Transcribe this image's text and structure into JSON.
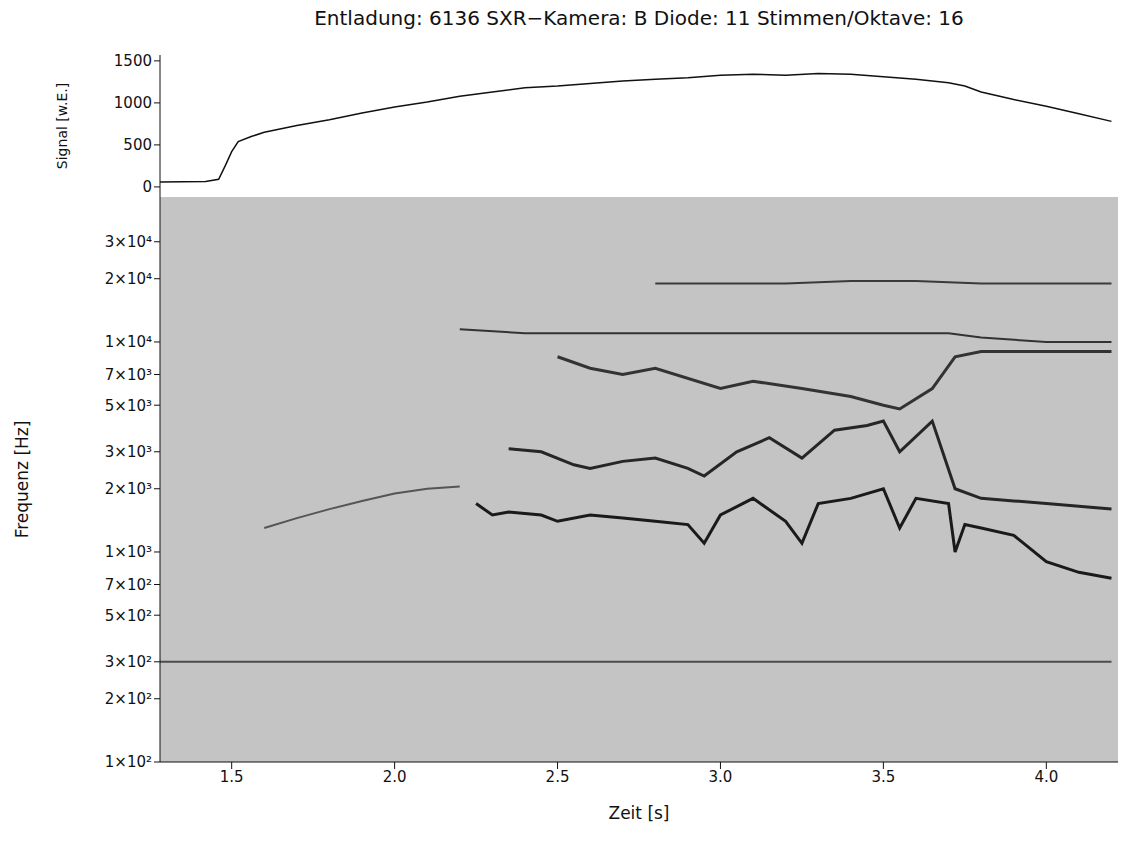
{
  "chart_data": [
    {
      "type": "line",
      "title": "Entladung: 6136 SXR−Kamera: B Diode: 11 Stimmen/Oktave: 16",
      "y_label": "Signal [w.E.]",
      "color": "#111111",
      "tick_labels": "y",
      "x": [
        1.28,
        1.35,
        1.42,
        1.46,
        1.48,
        1.5,
        1.52,
        1.56,
        1.6,
        1.7,
        1.8,
        1.9,
        2.0,
        2.1,
        2.2,
        2.3,
        2.4,
        2.5,
        2.6,
        2.7,
        2.8,
        2.9,
        3.0,
        3.1,
        3.2,
        3.3,
        3.4,
        3.5,
        3.6,
        3.7,
        3.75,
        3.8,
        3.9,
        4.0,
        4.1,
        4.2
      ],
      "values": [
        60,
        62,
        65,
        90,
        250,
        420,
        540,
        600,
        650,
        730,
        800,
        880,
        950,
        1010,
        1080,
        1130,
        1180,
        1200,
        1230,
        1260,
        1280,
        1300,
        1330,
        1340,
        1330,
        1350,
        1340,
        1310,
        1280,
        1240,
        1200,
        1130,
        1040,
        960,
        870,
        780
      ],
      "xlim": [
        1.28,
        4.22
      ],
      "xticks": [
        1.5,
        {
          "value": 2,
          "label": "2.0"
        },
        2.5,
        {
          "value": 3,
          "label": "3.0"
        },
        3.5,
        {
          "value": 4,
          "label": "4.0"
        }
      ],
      "ylim": [
        -120,
        1570
      ],
      "yticks": [
        0,
        500,
        1000,
        1500
      ]
    },
    {
      "type": "line",
      "x_label": "Zeit [s]",
      "y_label": "Frequenz [Hz]",
      "log": "y",
      "xlim": [
        1.28,
        4.22
      ],
      "xticks": [
        1.5,
        {
          "value": 2,
          "label": "2.0"
        },
        2.5,
        {
          "value": 3,
          "label": "3.0"
        },
        3.5,
        {
          "value": 4,
          "label": "4.0"
        }
      ],
      "ylim": [
        100,
        49000
      ],
      "yticks": [
        {
          "value": 100,
          "label": "1×10²"
        },
        {
          "value": 200,
          "label": "2×10²"
        },
        {
          "value": 300,
          "label": "3×10²"
        },
        {
          "value": 500,
          "label": "5×10²"
        },
        {
          "value": 700,
          "label": "7×10²"
        },
        {
          "value": 1000,
          "label": "1×10³"
        },
        {
          "value": 2000,
          "label": "2×10³"
        },
        {
          "value": 3000,
          "label": "3×10³"
        },
        {
          "value": 5000,
          "label": "5×10³"
        },
        {
          "value": 7000,
          "label": "7×10³"
        },
        {
          "value": 10000,
          "label": "1×10⁴"
        },
        {
          "value": 20000,
          "label": "2×10⁴"
        },
        {
          "value": 30000,
          "label": "3×10⁴"
        }
      ],
      "series": [
        {
          "color": "#1a1a1a",
          "x": [
            2.25,
            2.3,
            2.35,
            2.45,
            2.5,
            2.6,
            2.7,
            2.8,
            2.9,
            2.95,
            3.0,
            3.1,
            3.2,
            3.25,
            3.3,
            3.4,
            3.5,
            3.55,
            3.6,
            3.7,
            3.72,
            3.75,
            3.8,
            3.9,
            4.0,
            4.1,
            4.2
          ],
          "values": [
            1700,
            1500,
            1550,
            1500,
            1400,
            1500,
            1450,
            1400,
            1350,
            1100,
            1500,
            1800,
            1400,
            1100,
            1700,
            1800,
            2000,
            1300,
            1800,
            1700,
            1000,
            1350,
            1300,
            1200,
            900,
            800,
            750
          ]
        },
        {
          "color": "#262626",
          "x": [
            2.35,
            2.45,
            2.55,
            2.6,
            2.7,
            2.8,
            2.9,
            2.95,
            3.05,
            3.15,
            3.25,
            3.35,
            3.45,
            3.5,
            3.55,
            3.65,
            3.72,
            3.8,
            3.9,
            4.0,
            4.1,
            4.2
          ],
          "values": [
            3100,
            3000,
            2600,
            2500,
            2700,
            2800,
            2500,
            2300,
            3000,
            3500,
            2800,
            3800,
            4000,
            4200,
            3000,
            4200,
            2000,
            1800,
            1750,
            1700,
            1650,
            1600
          ]
        },
        {
          "color": "#333333",
          "x": [
            2.5,
            2.6,
            2.7,
            2.8,
            3.0,
            3.1,
            3.25,
            3.4,
            3.5,
            3.55,
            3.65,
            3.72,
            3.8,
            4.0,
            4.2
          ],
          "values": [
            8500,
            7500,
            7000,
            7500,
            6000,
            6500,
            6000,
            5500,
            5000,
            4800,
            6000,
            8500,
            9000,
            9000,
            9000
          ]
        },
        {
          "color": "#333333",
          "x": [
            2.2,
            2.4,
            2.6,
            2.8,
            3.0,
            3.2,
            3.4,
            3.6,
            3.7,
            3.8,
            4.0,
            4.2
          ],
          "values": [
            11500,
            11000,
            11000,
            11000,
            11000,
            11000,
            11000,
            11000,
            11000,
            10500,
            10000,
            10000
          ]
        },
        {
          "color": "#3a3a3a",
          "x": [
            2.8,
            3.0,
            3.2,
            3.4,
            3.6,
            3.8,
            4.0,
            4.2
          ],
          "values": [
            19000,
            19000,
            19000,
            19500,
            19500,
            19000,
            19000,
            19000
          ]
        },
        {
          "color": "#4d4d4d",
          "x": [
            1.28,
            2.0,
            3.0,
            4.0,
            4.2
          ],
          "values": [
            300,
            300,
            300,
            300,
            300
          ]
        },
        {
          "color": "#555555",
          "x": [
            1.6,
            1.7,
            1.8,
            1.9,
            2.0,
            2.1,
            2.2
          ],
          "values": [
            1300,
            1450,
            1600,
            1750,
            1900,
            2000,
            2050
          ]
        }
      ]
    }
  ]
}
